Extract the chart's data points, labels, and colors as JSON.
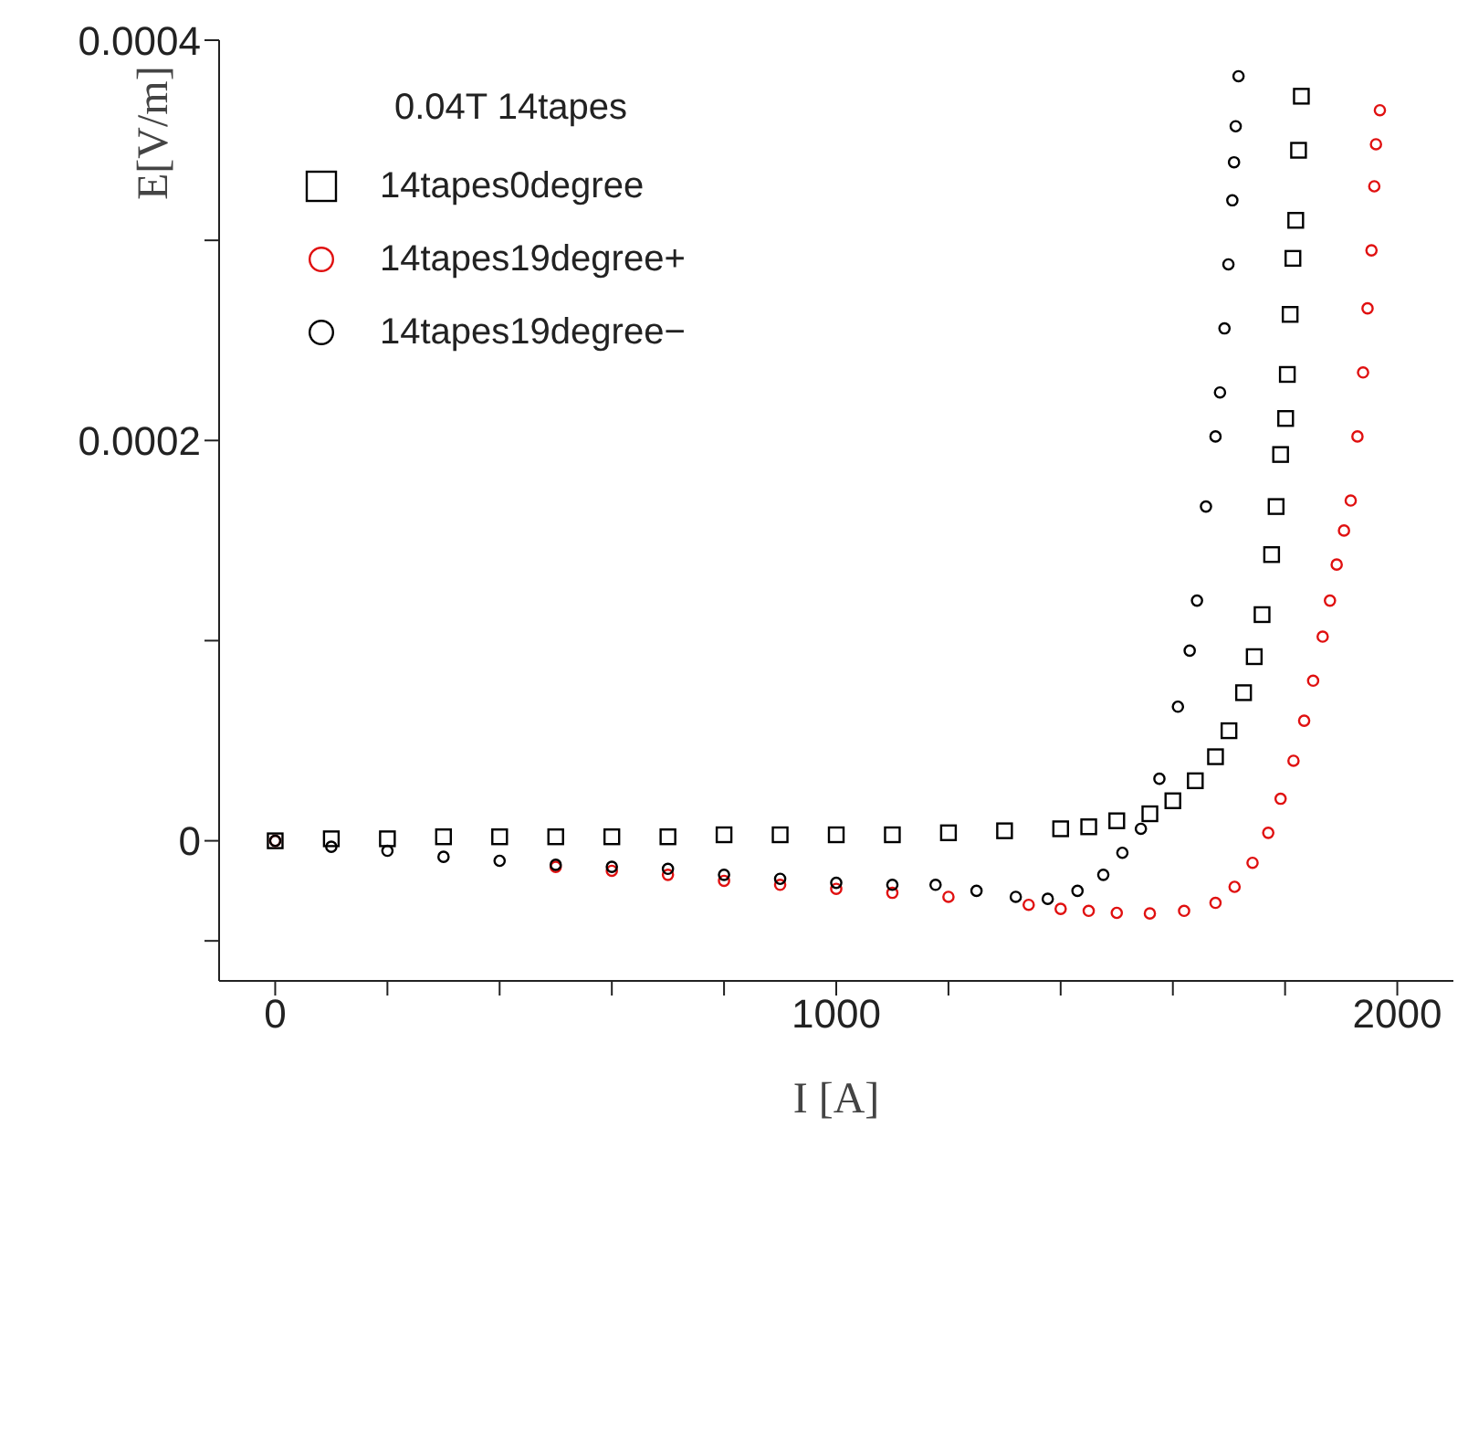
{
  "chart_data": {
    "type": "scatter",
    "xlabel": "I [A]",
    "ylabel": "E[V/m]",
    "legend_title": "0.04T 14tapes",
    "legend": "top left",
    "grid": false,
    "xlim": [
      -100,
      2100
    ],
    "xticks": [
      0,
      {
        "value": 200,
        "label": null
      },
      {
        "value": 400,
        "label": null
      },
      {
        "value": 600,
        "label": null
      },
      {
        "value": 800,
        "label": null
      },
      1000,
      {
        "value": 1200,
        "label": null
      },
      {
        "value": 1400,
        "label": null
      },
      {
        "value": 1600,
        "label": null
      },
      {
        "value": 1800,
        "label": null
      },
      2000
    ],
    "ylim": [
      -7e-05,
      0.0004
    ],
    "yticks": [
      {
        "value": -5e-05,
        "label": null
      },
      0,
      {
        "value": 0.0001,
        "label": null
      },
      0.0002,
      {
        "value": 0.0003,
        "label": null
      },
      0.0004
    ],
    "series": [
      {
        "name": "14tapes0degree",
        "color": "#000000",
        "marker": "square",
        "x": [
          0,
          100,
          200,
          300,
          400,
          500,
          600,
          700,
          800,
          900,
          1000,
          1100,
          1200,
          1300,
          1400,
          1450,
          1500,
          1559,
          1600,
          1640,
          1676,
          1700,
          1726,
          1745,
          1759,
          1776,
          1784,
          1792,
          1801,
          1804,
          1809,
          1814,
          1819,
          1824,
          1829
        ],
        "values": [
          0,
          1e-06,
          1e-06,
          2e-06,
          2e-06,
          2e-06,
          2e-06,
          2e-06,
          3e-06,
          3e-06,
          3e-06,
          3e-06,
          4e-06,
          5e-06,
          6e-06,
          7e-06,
          1e-05,
          1.35e-05,
          2e-05,
          3e-05,
          4.2e-05,
          5.5e-05,
          7.4e-05,
          9.2e-05,
          0.000113,
          0.000143,
          0.000167,
          0.000193,
          0.000211,
          0.000233,
          0.000263,
          0.000291,
          0.00031,
          0.000345,
          0.000372
        ]
      },
      {
        "name": "14tapes19degree+",
        "color": "#e01010",
        "marker": "circle",
        "x": [
          0,
          100,
          200,
          300,
          400,
          500,
          600,
          700,
          800,
          900,
          1000,
          1100,
          1200,
          1343,
          1400,
          1450,
          1500,
          1559,
          1620,
          1676,
          1710,
          1742,
          1770,
          1792,
          1815,
          1834,
          1850,
          1867,
          1880,
          1892,
          1905,
          1917,
          1929,
          1939,
          1947,
          1954,
          1959,
          1962,
          1969
        ],
        "values": [
          0,
          null,
          null,
          null,
          null,
          -1.3e-05,
          -1.5e-05,
          -1.7e-05,
          -2e-05,
          -2.2e-05,
          -2.4e-05,
          -2.6e-05,
          -2.8e-05,
          -3.2e-05,
          -3.4e-05,
          -3.5e-05,
          -3.6e-05,
          -3.63e-05,
          -3.5e-05,
          -3.1e-05,
          -2.3e-05,
          -1.1e-05,
          4e-06,
          2.1e-05,
          4e-05,
          6e-05,
          8e-05,
          0.000102,
          0.00012,
          0.000138,
          0.000155,
          0.00017,
          0.000202,
          0.000234,
          0.000266,
          0.000295,
          0.000327,
          0.000348,
          0.000365
        ]
      },
      {
        "name": "14tapes19degree−",
        "color": "#000000",
        "marker": "circle",
        "x": [
          0,
          100,
          200,
          300,
          400,
          500,
          600,
          700,
          800,
          900,
          1000,
          1100,
          1177,
          1250,
          1320,
          1377,
          1430,
          1476,
          1510,
          1543,
          1576,
          1609,
          1630,
          1643,
          1659,
          1676,
          1684,
          1692,
          1699,
          1706,
          1709,
          1712,
          1717
        ],
        "values": [
          0,
          -3e-06,
          -5e-06,
          -8e-06,
          -1e-05,
          -1.2e-05,
          -1.3e-05,
          -1.4e-05,
          -1.7e-05,
          -1.9e-05,
          -2.1e-05,
          -2.2e-05,
          -2.2e-05,
          -2.5e-05,
          -2.8e-05,
          -2.9e-05,
          -2.5e-05,
          -1.7e-05,
          -6e-06,
          6e-06,
          3.1e-05,
          6.7e-05,
          9.5e-05,
          0.00012,
          0.000167,
          0.000202,
          0.000224,
          0.000256,
          0.000288,
          0.00032,
          0.000339,
          0.000357,
          0.000382
        ]
      }
    ]
  }
}
